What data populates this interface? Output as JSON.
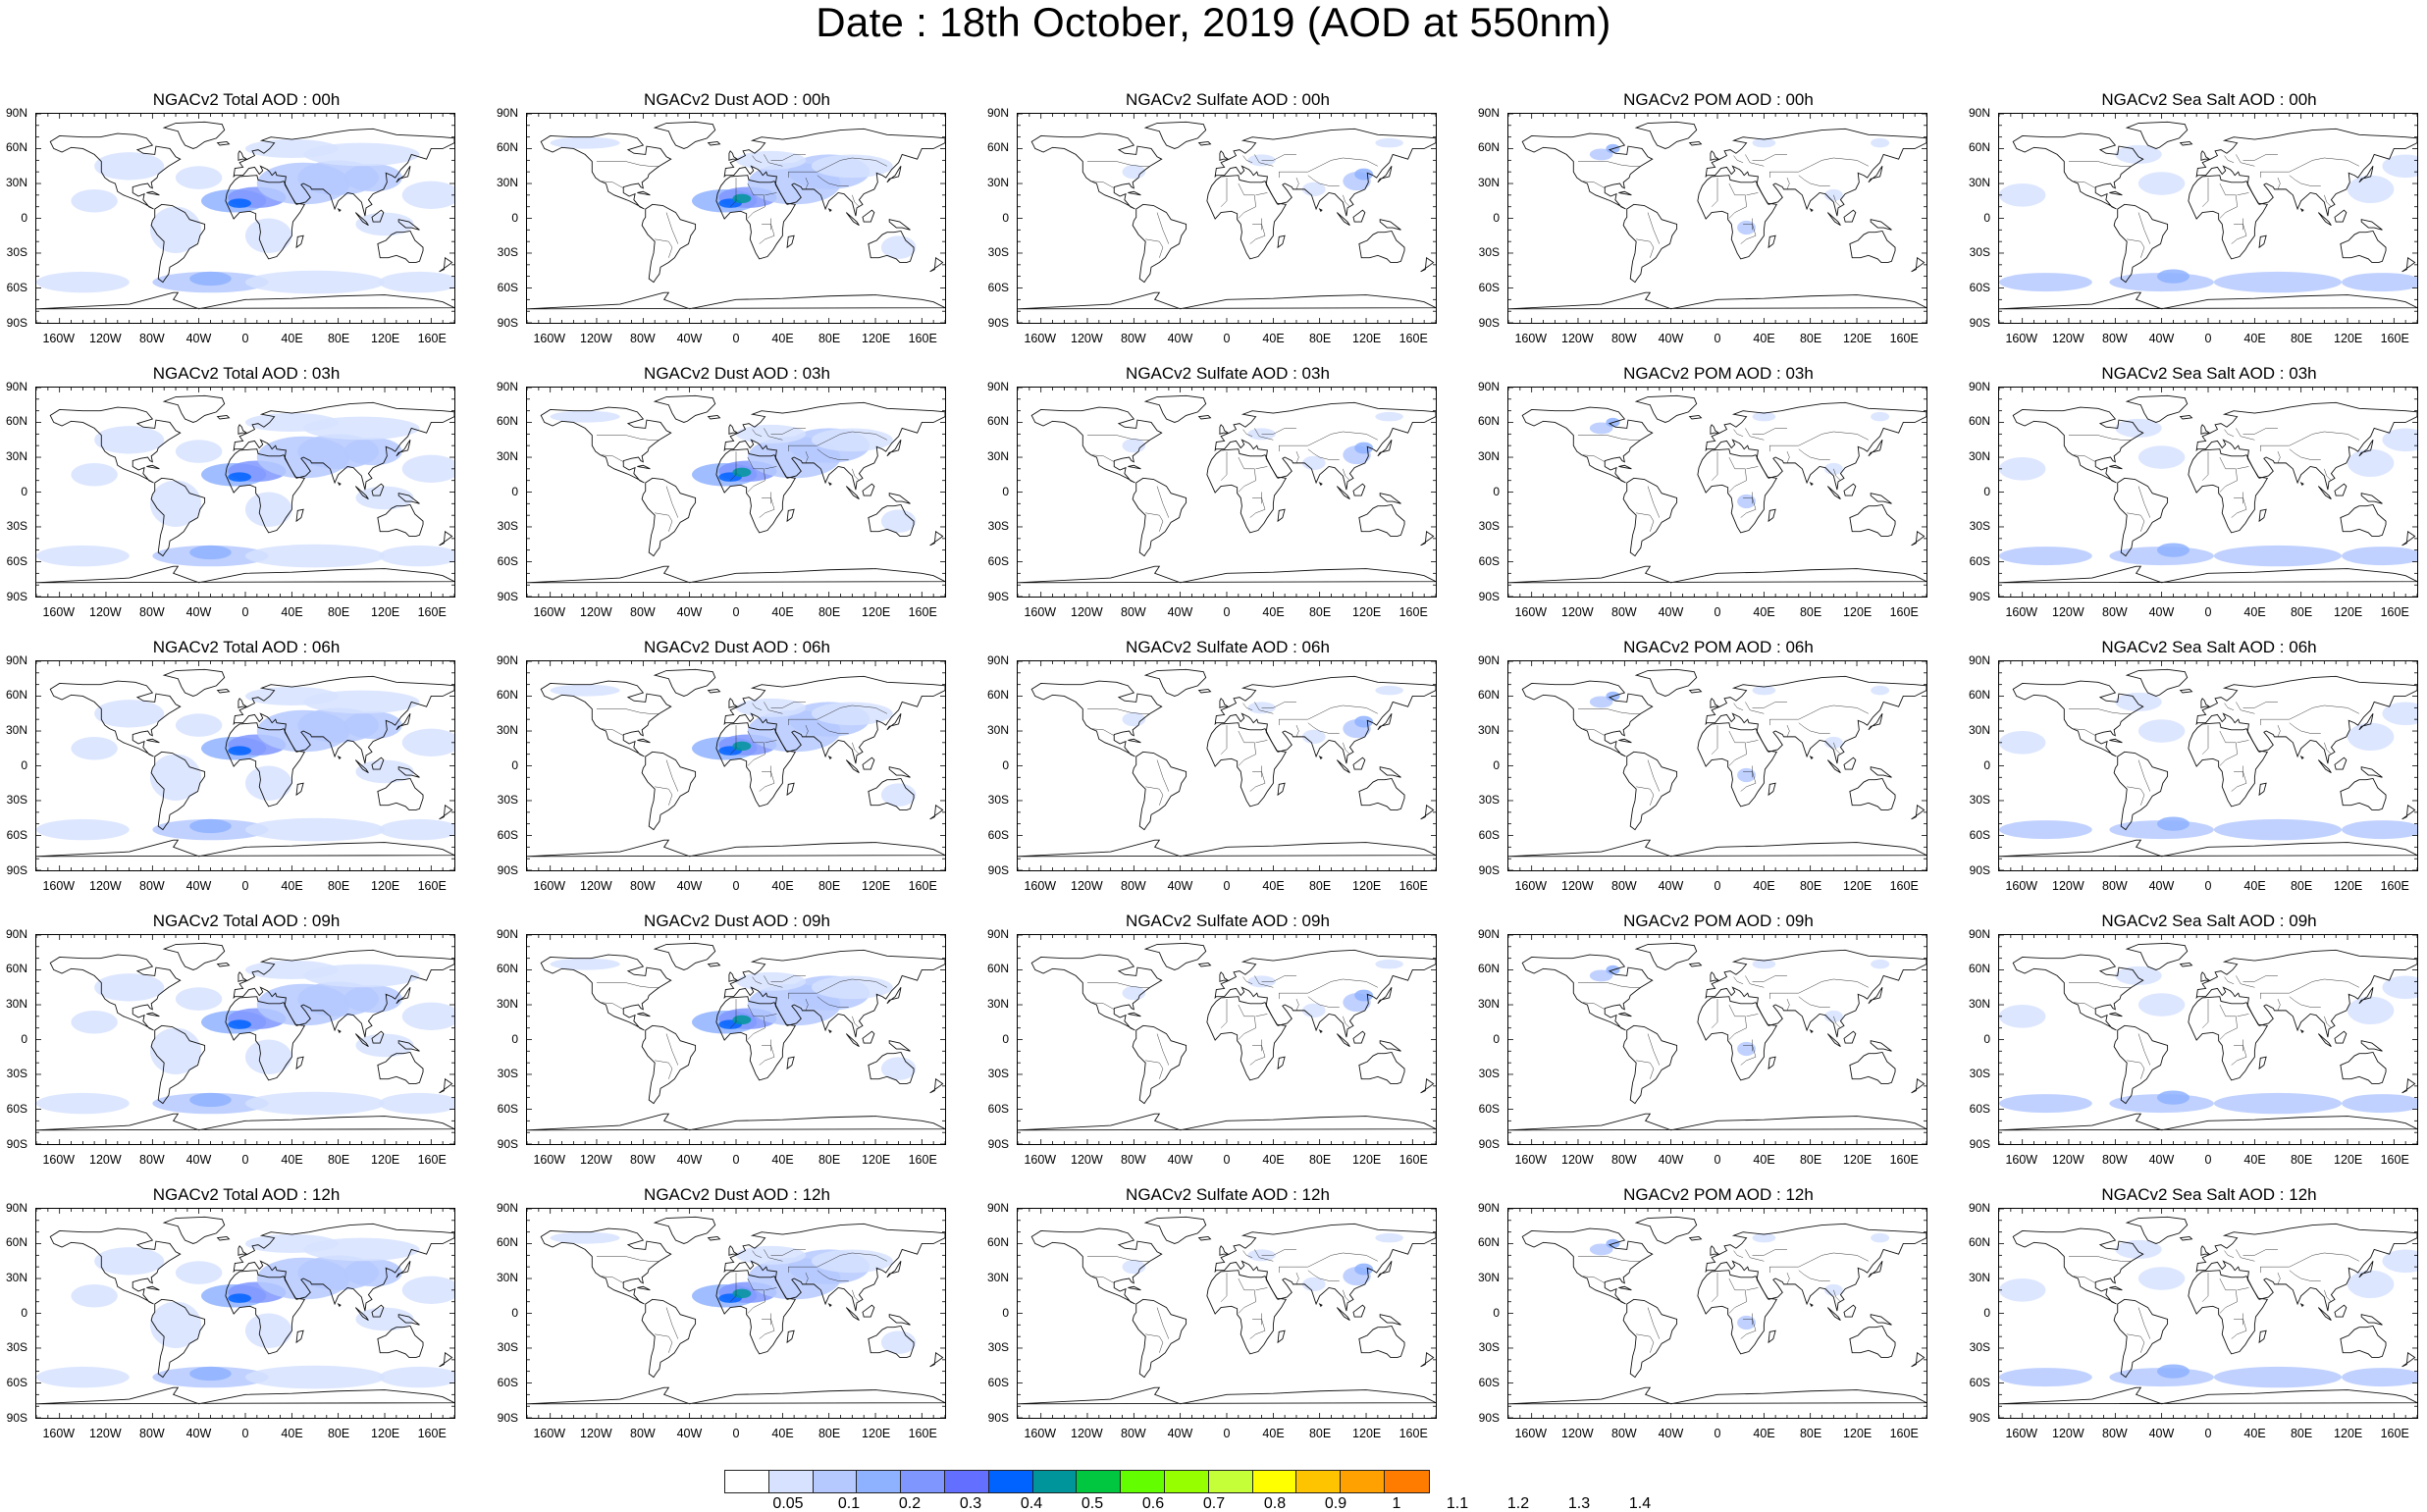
{
  "title": "Date : 18th October, 2019 (AOD at 550nm)",
  "lat_labels": [
    "90N",
    "60N",
    "30N",
    "0",
    "30S",
    "60S",
    "90S"
  ],
  "lon_labels": [
    "160W",
    "120W",
    "80W",
    "40W",
    "0",
    "40E",
    "80E",
    "120E",
    "160E"
  ],
  "lon_values": [
    -160,
    -120,
    -80,
    -40,
    0,
    40,
    80,
    120,
    160
  ],
  "species": [
    "total",
    "dust",
    "sulfate",
    "pom",
    "seasalt"
  ],
  "panels": [
    [
      "NGACv2 Total AOD : 00h",
      "NGACv2 Dust AOD : 00h",
      "NGACv2 Sulfate AOD : 00h",
      "NGACv2 POM AOD : 00h",
      "NGACv2 Sea Salt AOD : 00h"
    ],
    [
      "NGACv2 Total AOD : 03h",
      "NGACv2 Dust AOD : 03h",
      "NGACv2 Sulfate AOD : 03h",
      "NGACv2 POM AOD : 03h",
      "NGACv2 Sea Salt AOD : 03h"
    ],
    [
      "NGACv2 Total AOD : 06h",
      "NGACv2 Dust AOD : 06h",
      "NGACv2 Sulfate AOD : 06h",
      "NGACv2 POM AOD : 06h",
      "NGACv2 Sea Salt AOD : 06h"
    ],
    [
      "NGACv2 Total AOD : 09h",
      "NGACv2 Dust AOD : 09h",
      "NGACv2 Sulfate AOD : 09h",
      "NGACv2 POM AOD : 09h",
      "NGACv2 Sea Salt  AOD : 09h"
    ],
    [
      "NGACv2 Total AOD  : 12h",
      "NGACv2 Dust AOD : 12h",
      "NGACv2 Sulfate AOD : 12h",
      "NGACv2 POM  AOD : 12h",
      "NGACv2 Sea Salt  AOD : 12h"
    ]
  ],
  "colorbar": {
    "labels": [
      "0.05",
      "0.1",
      "0.2",
      "0.3",
      "0.4",
      "0.5",
      "0.6",
      "0.7",
      "0.8",
      "0.9",
      "1",
      "1.1",
      "1.2",
      "1.3",
      "1.4"
    ],
    "colors": [
      "#ffffff",
      "#d6e2ff",
      "#b5c9ff",
      "#8eb2ff",
      "#7f96ff",
      "#6370ff",
      "#0063ff",
      "#00959b",
      "#00c73f",
      "#63ff00",
      "#96ff00",
      "#c4ff38",
      "#ffff00",
      "#ffc400",
      "#ffa100",
      "#ff7c00",
      "#ff4900",
      "#ff0d00"
    ]
  }
}
